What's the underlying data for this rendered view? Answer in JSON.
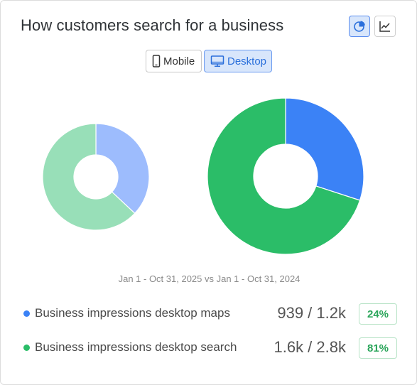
{
  "header": {
    "title": "How customers search for a business",
    "view_buttons": [
      {
        "name": "pie-chart-view",
        "icon": "pie-chart-icon",
        "active": true
      },
      {
        "name": "line-chart-view",
        "icon": "line-chart-icon",
        "active": false
      }
    ]
  },
  "device_toggle": {
    "mobile_label": "Mobile",
    "desktop_label": "Desktop",
    "selected": "Desktop"
  },
  "date_range": "Jan 1 - Oct 31, 2025 vs Jan 1 - Oct 31, 2024",
  "colors": {
    "maps": "#3b82f6",
    "search": "#2bbd68",
    "maps_faded": "#9dbcfd",
    "search_faded": "#98dfb8",
    "badge_text": "#2aa55a",
    "accent": "#2a6fdb"
  },
  "chart_data": [
    {
      "type": "pie",
      "series": [
        {
          "name": "Business impressions desktop maps",
          "value": 939
        },
        {
          "name": "Business impressions desktop search",
          "value": 1600
        }
      ]
    },
    {
      "type": "pie",
      "series": [
        {
          "name": "Business impressions desktop maps",
          "value": 1200
        },
        {
          "name": "Business impressions desktop search",
          "value": 2800
        }
      ]
    }
  ],
  "metrics": [
    {
      "label": "Business impressions desktop maps",
      "value": "939 / 1.2k",
      "change": "24%",
      "color": "#3b82f6"
    },
    {
      "label": "Business impressions desktop search",
      "value": "1.6k / 2.8k",
      "change": "81%",
      "color": "#2bbd68"
    }
  ]
}
